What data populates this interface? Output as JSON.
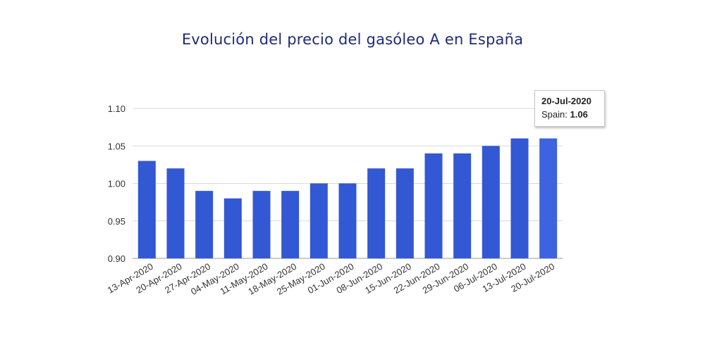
{
  "chart_data": {
    "type": "bar",
    "title": "Evolución del precio del gasóleo A en España",
    "xlabel": "",
    "ylabel": "",
    "categories": [
      "13-Apr-2020",
      "20-Apr-2020",
      "27-Apr-2020",
      "04-May-2020",
      "11-May-2020",
      "18-May-2020",
      "25-May-2020",
      "01-Jun-2020",
      "08-Jun-2020",
      "15-Jun-2020",
      "22-Jun-2020",
      "29-Jun-2020",
      "06-Jul-2020",
      "13-Jul-2020",
      "20-Jul-2020"
    ],
    "series": [
      {
        "name": "Spain",
        "values": [
          1.03,
          1.02,
          0.99,
          0.98,
          0.99,
          0.99,
          1.0,
          1.0,
          1.02,
          1.02,
          1.04,
          1.04,
          1.05,
          1.06,
          1.06
        ]
      }
    ],
    "ylim": [
      0.9,
      1.1
    ],
    "yticks": [
      "0.90",
      "0.95",
      "1.00",
      "1.05",
      "1.10"
    ],
    "grid": true,
    "bar_color": "#3358d4",
    "highlight_bar_color": "#3d63e0",
    "title_color": "#1f2a7a"
  },
  "tooltip": {
    "date": "20-Jul-2020",
    "series_label": "Spain:",
    "value": "1.06"
  }
}
